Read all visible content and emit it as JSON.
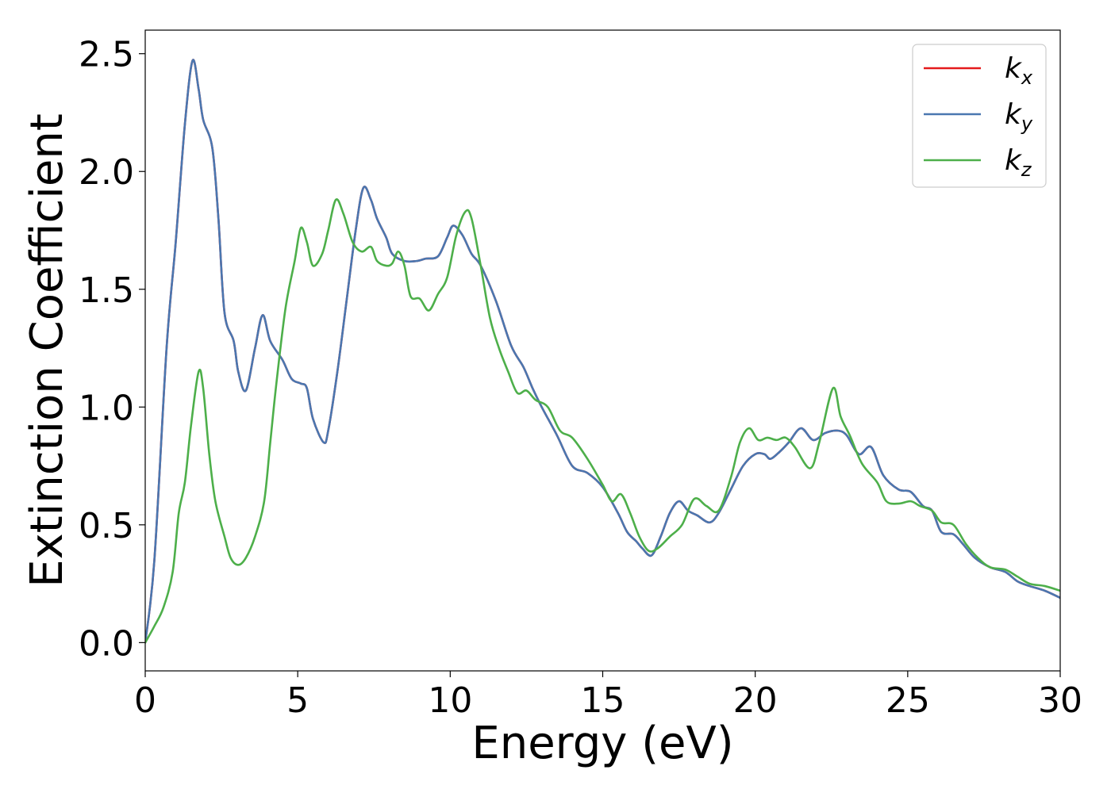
{
  "chart_data": {
    "type": "line",
    "xlabel": "Energy (eV)",
    "ylabel": "Extinction Coefficient",
    "xlim": [
      0,
      30
    ],
    "ylim": [
      -0.12,
      2.6
    ],
    "xticks": [
      0,
      5,
      10,
      15,
      20,
      25,
      30
    ],
    "xtick_labels": [
      "0",
      "5",
      "10",
      "15",
      "20",
      "25",
      "30"
    ],
    "yticks": [
      0.0,
      0.5,
      1.0,
      1.5,
      2.0,
      2.5
    ],
    "ytick_labels": [
      "0.0",
      "0.5",
      "1.0",
      "1.5",
      "2.0",
      "2.5"
    ],
    "grid": false,
    "legend": {
      "position": "top-right"
    },
    "series": [
      {
        "name": "k",
        "sub": "x",
        "color": "#e41a1c",
        "dash": "",
        "points": [
          [
            0,
            0
          ],
          [
            0.3,
            0.35
          ],
          [
            0.7,
            1.25
          ],
          [
            1.0,
            1.7
          ],
          [
            1.3,
            2.2
          ],
          [
            1.55,
            2.47
          ],
          [
            1.75,
            2.35
          ],
          [
            1.9,
            2.22
          ],
          [
            2.2,
            2.1
          ],
          [
            2.4,
            1.8
          ],
          [
            2.6,
            1.4
          ],
          [
            2.9,
            1.28
          ],
          [
            3.05,
            1.15
          ],
          [
            3.3,
            1.07
          ],
          [
            3.6,
            1.25
          ],
          [
            3.85,
            1.39
          ],
          [
            4.1,
            1.28
          ],
          [
            4.5,
            1.2
          ],
          [
            4.8,
            1.12
          ],
          [
            5.1,
            1.1
          ],
          [
            5.3,
            1.08
          ],
          [
            5.5,
            0.95
          ],
          [
            5.85,
            0.85
          ],
          [
            6.0,
            0.9
          ],
          [
            6.3,
            1.15
          ],
          [
            6.6,
            1.45
          ],
          [
            6.9,
            1.75
          ],
          [
            7.15,
            1.93
          ],
          [
            7.4,
            1.88
          ],
          [
            7.6,
            1.8
          ],
          [
            7.9,
            1.72
          ],
          [
            8.1,
            1.65
          ],
          [
            8.5,
            1.62
          ],
          [
            8.9,
            1.62
          ],
          [
            9.2,
            1.63
          ],
          [
            9.6,
            1.64
          ],
          [
            9.9,
            1.72
          ],
          [
            10.1,
            1.77
          ],
          [
            10.4,
            1.73
          ],
          [
            10.7,
            1.65
          ],
          [
            11.0,
            1.6
          ],
          [
            11.5,
            1.45
          ],
          [
            12.0,
            1.26
          ],
          [
            12.4,
            1.17
          ],
          [
            12.7,
            1.08
          ],
          [
            13.0,
            1.0
          ],
          [
            13.5,
            0.88
          ],
          [
            14.0,
            0.75
          ],
          [
            14.5,
            0.72
          ],
          [
            15.0,
            0.66
          ],
          [
            15.5,
            0.55
          ],
          [
            15.8,
            0.47
          ],
          [
            16.1,
            0.43
          ],
          [
            16.3,
            0.4
          ],
          [
            16.6,
            0.37
          ],
          [
            16.9,
            0.45
          ],
          [
            17.2,
            0.55
          ],
          [
            17.5,
            0.6
          ],
          [
            17.8,
            0.56
          ],
          [
            18.1,
            0.54
          ],
          [
            18.5,
            0.51
          ],
          [
            18.8,
            0.55
          ],
          [
            19.2,
            0.65
          ],
          [
            19.6,
            0.75
          ],
          [
            20.0,
            0.8
          ],
          [
            20.3,
            0.8
          ],
          [
            20.5,
            0.78
          ],
          [
            20.8,
            0.81
          ],
          [
            21.1,
            0.85
          ],
          [
            21.5,
            0.91
          ],
          [
            21.9,
            0.86
          ],
          [
            22.3,
            0.89
          ],
          [
            22.7,
            0.9
          ],
          [
            23.0,
            0.88
          ],
          [
            23.4,
            0.8
          ],
          [
            23.8,
            0.83
          ],
          [
            24.2,
            0.71
          ],
          [
            24.7,
            0.65
          ],
          [
            25.1,
            0.64
          ],
          [
            25.5,
            0.58
          ],
          [
            25.8,
            0.56
          ],
          [
            26.1,
            0.47
          ],
          [
            26.5,
            0.46
          ],
          [
            26.8,
            0.42
          ],
          [
            27.2,
            0.36
          ],
          [
            27.7,
            0.32
          ],
          [
            28.2,
            0.3
          ],
          [
            28.6,
            0.26
          ],
          [
            29.0,
            0.24
          ],
          [
            29.5,
            0.22
          ],
          [
            30,
            0.19
          ]
        ]
      },
      {
        "name": "k",
        "sub": "y",
        "color": "#4a77b0",
        "dash": "",
        "points": [
          [
            0,
            0
          ],
          [
            0.3,
            0.35
          ],
          [
            0.7,
            1.25
          ],
          [
            1.0,
            1.7
          ],
          [
            1.3,
            2.2
          ],
          [
            1.55,
            2.47
          ],
          [
            1.75,
            2.35
          ],
          [
            1.9,
            2.22
          ],
          [
            2.2,
            2.1
          ],
          [
            2.4,
            1.8
          ],
          [
            2.6,
            1.4
          ],
          [
            2.9,
            1.28
          ],
          [
            3.05,
            1.15
          ],
          [
            3.3,
            1.07
          ],
          [
            3.6,
            1.25
          ],
          [
            3.85,
            1.39
          ],
          [
            4.1,
            1.28
          ],
          [
            4.5,
            1.2
          ],
          [
            4.8,
            1.12
          ],
          [
            5.1,
            1.1
          ],
          [
            5.3,
            1.08
          ],
          [
            5.5,
            0.95
          ],
          [
            5.85,
            0.85
          ],
          [
            6.0,
            0.9
          ],
          [
            6.3,
            1.15
          ],
          [
            6.6,
            1.45
          ],
          [
            6.9,
            1.75
          ],
          [
            7.15,
            1.93
          ],
          [
            7.4,
            1.88
          ],
          [
            7.6,
            1.8
          ],
          [
            7.9,
            1.72
          ],
          [
            8.1,
            1.65
          ],
          [
            8.5,
            1.62
          ],
          [
            8.9,
            1.62
          ],
          [
            9.2,
            1.63
          ],
          [
            9.6,
            1.64
          ],
          [
            9.9,
            1.72
          ],
          [
            10.1,
            1.77
          ],
          [
            10.4,
            1.73
          ],
          [
            10.7,
            1.65
          ],
          [
            11.0,
            1.6
          ],
          [
            11.5,
            1.45
          ],
          [
            12.0,
            1.26
          ],
          [
            12.4,
            1.17
          ],
          [
            12.7,
            1.08
          ],
          [
            13.0,
            1.0
          ],
          [
            13.5,
            0.88
          ],
          [
            14.0,
            0.75
          ],
          [
            14.5,
            0.72
          ],
          [
            15.0,
            0.66
          ],
          [
            15.5,
            0.55
          ],
          [
            15.8,
            0.47
          ],
          [
            16.1,
            0.43
          ],
          [
            16.3,
            0.4
          ],
          [
            16.6,
            0.37
          ],
          [
            16.9,
            0.45
          ],
          [
            17.2,
            0.55
          ],
          [
            17.5,
            0.6
          ],
          [
            17.8,
            0.56
          ],
          [
            18.1,
            0.54
          ],
          [
            18.5,
            0.51
          ],
          [
            18.8,
            0.55
          ],
          [
            19.2,
            0.65
          ],
          [
            19.6,
            0.75
          ],
          [
            20.0,
            0.8
          ],
          [
            20.3,
            0.8
          ],
          [
            20.5,
            0.78
          ],
          [
            20.8,
            0.81
          ],
          [
            21.1,
            0.85
          ],
          [
            21.5,
            0.91
          ],
          [
            21.9,
            0.86
          ],
          [
            22.3,
            0.89
          ],
          [
            22.7,
            0.9
          ],
          [
            23.0,
            0.88
          ],
          [
            23.4,
            0.8
          ],
          [
            23.8,
            0.83
          ],
          [
            24.2,
            0.71
          ],
          [
            24.7,
            0.65
          ],
          [
            25.1,
            0.64
          ],
          [
            25.5,
            0.58
          ],
          [
            25.8,
            0.56
          ],
          [
            26.1,
            0.47
          ],
          [
            26.5,
            0.46
          ],
          [
            26.8,
            0.42
          ],
          [
            27.2,
            0.36
          ],
          [
            27.7,
            0.32
          ],
          [
            28.2,
            0.3
          ],
          [
            28.6,
            0.26
          ],
          [
            29.0,
            0.24
          ],
          [
            29.5,
            0.22
          ],
          [
            30,
            0.19
          ]
        ]
      },
      {
        "name": "k",
        "sub": "z",
        "color": "#4daf4a",
        "dash": "",
        "points": [
          [
            0,
            0
          ],
          [
            0.3,
            0.07
          ],
          [
            0.6,
            0.15
          ],
          [
            0.9,
            0.3
          ],
          [
            1.1,
            0.55
          ],
          [
            1.3,
            0.68
          ],
          [
            1.5,
            0.92
          ],
          [
            1.75,
            1.15
          ],
          [
            1.9,
            1.08
          ],
          [
            2.1,
            0.8
          ],
          [
            2.3,
            0.6
          ],
          [
            2.6,
            0.45
          ],
          [
            2.8,
            0.36
          ],
          [
            3.05,
            0.33
          ],
          [
            3.3,
            0.36
          ],
          [
            3.6,
            0.45
          ],
          [
            3.9,
            0.6
          ],
          [
            4.1,
            0.85
          ],
          [
            4.3,
            1.1
          ],
          [
            4.6,
            1.42
          ],
          [
            4.9,
            1.62
          ],
          [
            5.1,
            1.76
          ],
          [
            5.3,
            1.7
          ],
          [
            5.5,
            1.6
          ],
          [
            5.8,
            1.65
          ],
          [
            6.0,
            1.75
          ],
          [
            6.25,
            1.88
          ],
          [
            6.5,
            1.82
          ],
          [
            6.8,
            1.7
          ],
          [
            7.1,
            1.66
          ],
          [
            7.4,
            1.68
          ],
          [
            7.6,
            1.62
          ],
          [
            7.9,
            1.6
          ],
          [
            8.1,
            1.61
          ],
          [
            8.3,
            1.66
          ],
          [
            8.5,
            1.6
          ],
          [
            8.7,
            1.47
          ],
          [
            9.0,
            1.46
          ],
          [
            9.3,
            1.41
          ],
          [
            9.6,
            1.48
          ],
          [
            9.9,
            1.55
          ],
          [
            10.2,
            1.73
          ],
          [
            10.5,
            1.83
          ],
          [
            10.7,
            1.8
          ],
          [
            11.0,
            1.6
          ],
          [
            11.3,
            1.38
          ],
          [
            11.6,
            1.25
          ],
          [
            11.9,
            1.15
          ],
          [
            12.2,
            1.06
          ],
          [
            12.5,
            1.07
          ],
          [
            12.8,
            1.03
          ],
          [
            13.2,
            1.0
          ],
          [
            13.6,
            0.9
          ],
          [
            14.0,
            0.87
          ],
          [
            14.5,
            0.78
          ],
          [
            15.0,
            0.67
          ],
          [
            15.3,
            0.6
          ],
          [
            15.6,
            0.63
          ],
          [
            15.9,
            0.55
          ],
          [
            16.2,
            0.45
          ],
          [
            16.5,
            0.39
          ],
          [
            16.8,
            0.4
          ],
          [
            17.2,
            0.45
          ],
          [
            17.6,
            0.5
          ],
          [
            18.0,
            0.61
          ],
          [
            18.4,
            0.58
          ],
          [
            18.8,
            0.56
          ],
          [
            19.2,
            0.7
          ],
          [
            19.5,
            0.85
          ],
          [
            19.8,
            0.91
          ],
          [
            20.1,
            0.86
          ],
          [
            20.4,
            0.87
          ],
          [
            20.7,
            0.86
          ],
          [
            21.0,
            0.87
          ],
          [
            21.3,
            0.83
          ],
          [
            21.8,
            0.74
          ],
          [
            22.1,
            0.85
          ],
          [
            22.55,
            1.08
          ],
          [
            22.8,
            0.96
          ],
          [
            23.1,
            0.88
          ],
          [
            23.5,
            0.76
          ],
          [
            24.0,
            0.68
          ],
          [
            24.3,
            0.6
          ],
          [
            24.7,
            0.59
          ],
          [
            25.1,
            0.6
          ],
          [
            25.4,
            0.58
          ],
          [
            25.8,
            0.56
          ],
          [
            26.1,
            0.51
          ],
          [
            26.5,
            0.5
          ],
          [
            26.9,
            0.42
          ],
          [
            27.3,
            0.36
          ],
          [
            27.7,
            0.32
          ],
          [
            28.2,
            0.31
          ],
          [
            28.6,
            0.28
          ],
          [
            29.0,
            0.25
          ],
          [
            29.5,
            0.24
          ],
          [
            30,
            0.22
          ]
        ]
      }
    ]
  }
}
